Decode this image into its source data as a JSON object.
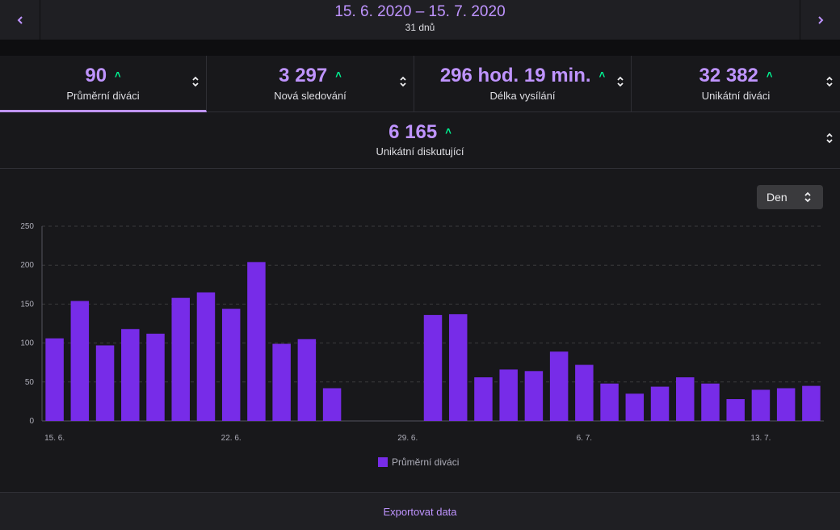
{
  "header": {
    "prev_icon": "chevron-left-icon",
    "next_icon": "chevron-right-icon",
    "date_range": "15. 6. 2020 – 15. 7. 2020",
    "days": "31 dnů"
  },
  "stats": [
    {
      "value": "90",
      "label": "Průměrní diváci",
      "trend": "up",
      "active": true
    },
    {
      "value": "3 297",
      "label": "Nová sledování",
      "trend": "up",
      "active": false
    },
    {
      "value": "296 hod. 19 min.",
      "label": "Délka vysílání",
      "trend": "up",
      "active": false
    },
    {
      "value": "32 382",
      "label": "Unikátní diváci",
      "trend": "up",
      "active": false
    }
  ],
  "stat_row2": {
    "value": "6 165",
    "label": "Unikátní diskutující",
    "trend": "up"
  },
  "granularity": {
    "selected": "Den"
  },
  "colors": {
    "accent": "#bf94ff",
    "bar": "#772ce8",
    "trend_up": "#00f593"
  },
  "chart_data": {
    "type": "bar",
    "title": "",
    "xlabel": "",
    "ylabel": "",
    "ylim": [
      0,
      250
    ],
    "yticks": [
      "0",
      "50",
      "100",
      "150",
      "200",
      "250"
    ],
    "grid": true,
    "legend": "bottom-center",
    "categories": [
      "15. 6.",
      "16. 6.",
      "17. 6.",
      "18. 6.",
      "19. 6.",
      "20. 6.",
      "21. 6.",
      "22. 6.",
      "23. 6.",
      "24. 6.",
      "25. 6.",
      "26. 6.",
      "27. 6.",
      "28. 6.",
      "29. 6.",
      "30. 6.",
      "1. 7.",
      "2. 7.",
      "3. 7.",
      "4. 7.",
      "5. 7.",
      "6. 7.",
      "7. 7.",
      "8. 7.",
      "9. 7.",
      "10. 7.",
      "11. 7.",
      "12. 7.",
      "13. 7.",
      "14. 7.",
      "15. 7."
    ],
    "xtick_labels": [
      "15. 6.",
      "22. 6.",
      "29. 6.",
      "6. 7.",
      "13. 7."
    ],
    "series": [
      {
        "name": "Průměrní diváci",
        "values": [
          106,
          154,
          97,
          118,
          112,
          158,
          165,
          144,
          204,
          99,
          105,
          42,
          0,
          0,
          0,
          136,
          137,
          56,
          66,
          64,
          89,
          72,
          48,
          35,
          44,
          56,
          48,
          28,
          40,
          42,
          45
        ]
      }
    ]
  },
  "footer": {
    "export_label": "Exportovat data"
  }
}
